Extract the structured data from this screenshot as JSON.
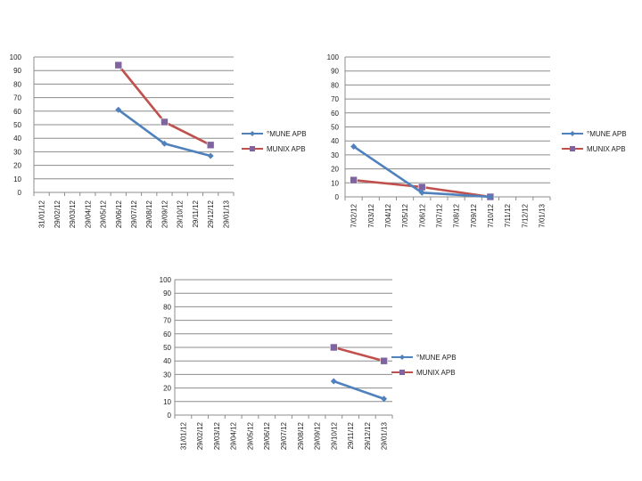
{
  "colors": {
    "series_a": "#4f81bd",
    "series_b": "#c0504d",
    "series_b_marker": "#8064a2",
    "grid": "#8c8c8c"
  },
  "chart_data": [
    {
      "type": "line",
      "title": "",
      "ylim": [
        0,
        100
      ],
      "yticks": [
        "0",
        "10",
        "20",
        "30",
        "40",
        "50",
        "60",
        "70",
        "80",
        "90",
        "100"
      ],
      "categories": [
        "31/01/12",
        "29/02/12",
        "29/03/12",
        "29/04/12",
        "29/05/12",
        "29/06/12",
        "29/07/12",
        "29/08/12",
        "29/09/12",
        "29/10/12",
        "29/11/12",
        "29/12/12",
        "29/01/13"
      ],
      "series": [
        {
          "name": "°MUNE APB",
          "marker": "diamond",
          "values": [
            null,
            null,
            null,
            null,
            null,
            61,
            null,
            null,
            36,
            null,
            null,
            27,
            null
          ]
        },
        {
          "name": "MUNIX APB",
          "marker": "square",
          "values": [
            null,
            null,
            null,
            null,
            null,
            94,
            null,
            null,
            52,
            null,
            null,
            35,
            null
          ]
        }
      ],
      "legend": "right"
    },
    {
      "type": "line",
      "title": "",
      "ylim": [
        0,
        100
      ],
      "yticks": [
        "0",
        "10",
        "20",
        "30",
        "40",
        "50",
        "60",
        "70",
        "80",
        "90",
        "100"
      ],
      "categories": [
        "7/02/12",
        "7/03/12",
        "7/04/12",
        "7/05/12",
        "7/06/12",
        "7/07/12",
        "7/08/12",
        "7/09/12",
        "7/10/12",
        "7/11/12",
        "7/12/12",
        "7/01/13"
      ],
      "series": [
        {
          "name": "°MUNE APB",
          "marker": "diamond",
          "values": [
            36,
            null,
            null,
            null,
            3,
            null,
            null,
            null,
            0,
            null,
            null,
            null
          ]
        },
        {
          "name": "MUNIX APB",
          "marker": "square",
          "values": [
            12,
            null,
            null,
            null,
            7,
            null,
            null,
            null,
            0,
            null,
            null,
            null
          ]
        }
      ],
      "legend": "right"
    },
    {
      "type": "line",
      "title": "",
      "ylim": [
        0,
        100
      ],
      "yticks": [
        "0",
        "10",
        "20",
        "30",
        "40",
        "50",
        "60",
        "70",
        "80",
        "90",
        "100"
      ],
      "categories": [
        "31/01/12",
        "29/02/12",
        "29/03/12",
        "29/04/12",
        "29/05/12",
        "29/06/12",
        "29/07/12",
        "29/08/12",
        "29/09/12",
        "29/10/12",
        "29/11/12",
        "29/12/12",
        "29/01/13"
      ],
      "series": [
        {
          "name": "°MUNE APB",
          "marker": "diamond",
          "values": [
            null,
            null,
            null,
            null,
            null,
            null,
            null,
            null,
            null,
            25,
            null,
            null,
            12
          ]
        },
        {
          "name": "MUNIX APB",
          "marker": "square",
          "values": [
            null,
            null,
            null,
            null,
            null,
            null,
            null,
            null,
            null,
            50,
            null,
            null,
            40
          ]
        }
      ],
      "legend": "right"
    }
  ]
}
